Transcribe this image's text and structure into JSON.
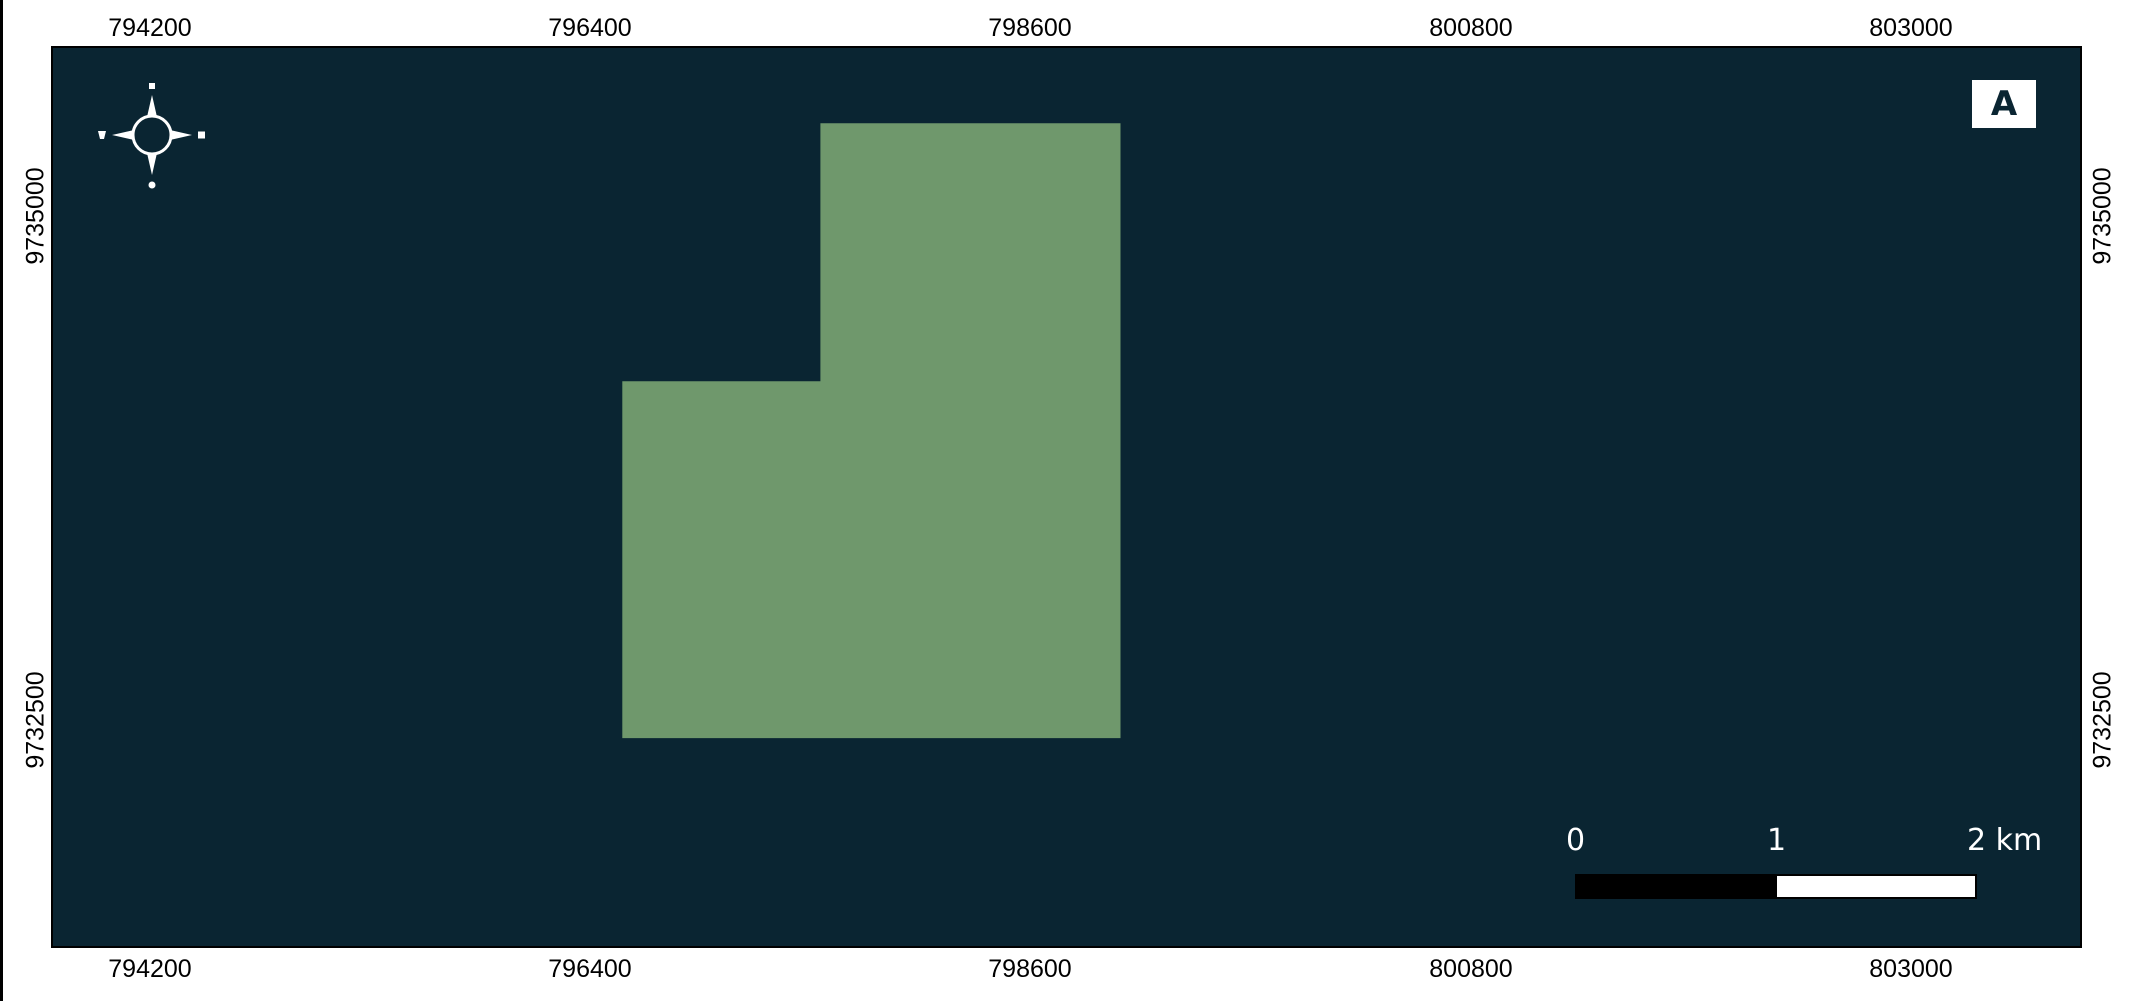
{
  "map": {
    "panel_label": "A",
    "colors": {
      "background": "#0a2532",
      "polygon_fill": "#6f986c",
      "frame": "#000000",
      "decor": "#ffffff"
    },
    "x_ticks": [
      "794200",
      "796400",
      "798600",
      "800800",
      "803000"
    ],
    "y_ticks": [
      "9735000",
      "9732500"
    ],
    "north_arrow_icon": "compass-rose-icon",
    "scale_bar": {
      "labels": [
        "0",
        "1",
        "2 km"
      ],
      "segments_km": [
        1,
        1
      ]
    },
    "area_polygon": {
      "vertices_easting_northing": [
        [
          797540,
          9735470
        ],
        [
          799040,
          9735470
        ],
        [
          799040,
          9732420
        ],
        [
          796550,
          9732420
        ],
        [
          796550,
          9734190
        ],
        [
          797540,
          9734190
        ]
      ]
    }
  }
}
